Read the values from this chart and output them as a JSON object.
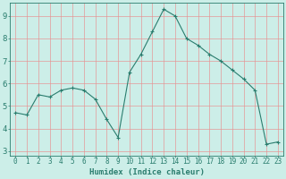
{
  "x": [
    0,
    1,
    2,
    3,
    4,
    5,
    6,
    7,
    8,
    9,
    10,
    11,
    12,
    13,
    14,
    15,
    16,
    17,
    18,
    19,
    20,
    21,
    22,
    23
  ],
  "y": [
    4.7,
    4.6,
    5.5,
    5.4,
    5.7,
    5.8,
    5.7,
    5.3,
    4.4,
    3.6,
    6.5,
    7.3,
    8.3,
    9.3,
    9.0,
    8.0,
    7.7,
    7.3,
    7.0,
    6.6,
    6.2,
    5.7,
    3.3,
    3.4
  ],
  "line_color": "#2a7d6e",
  "marker": "+",
  "marker_color": "#2a7d6e",
  "bg_color": "#cceee8",
  "grid_color": "#e89090",
  "xlabel": "Humidex (Indice chaleur)",
  "ylim": [
    2.8,
    9.6
  ],
  "xlim": [
    -0.5,
    23.5
  ],
  "yticks": [
    3,
    4,
    5,
    6,
    7,
    8,
    9
  ],
  "xticks": [
    0,
    1,
    2,
    3,
    4,
    5,
    6,
    7,
    8,
    9,
    10,
    11,
    12,
    13,
    14,
    15,
    16,
    17,
    18,
    19,
    20,
    21,
    22,
    23
  ],
  "font_color": "#2a7d6e",
  "label_fontsize": 6.5,
  "tick_fontsize": 5.5
}
